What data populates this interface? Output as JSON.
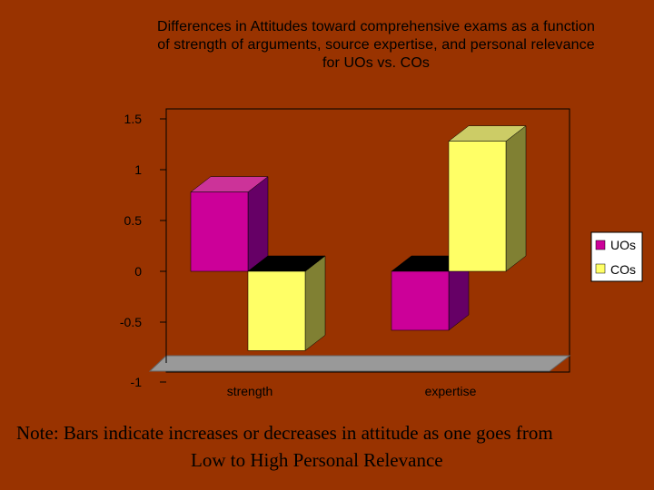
{
  "chart_data": {
    "type": "bar",
    "title_lines": [
      "Differences in Attitudes toward comprehensive exams as a function",
      "of strength of arguments, source expertise, and personal relevance",
      "for UOs vs. COs"
    ],
    "categories": [
      "strength",
      "expertise"
    ],
    "series": [
      {
        "name": "UOs",
        "values": [
          0.78,
          -0.58
        ],
        "color": "#CC0099"
      },
      {
        "name": "COs",
        "values": [
          -0.78,
          1.28
        ],
        "color": "#FFFF66"
      }
    ],
    "ylim": [
      -1,
      1.5
    ],
    "y_ticks": [
      "1.5",
      "1",
      "0.5",
      "0",
      "-0.5",
      "-1"
    ],
    "legend_position": "right",
    "three_d": true
  },
  "note": {
    "line1": "Note: Bars indicate increases or decreases in attitude as one goes from",
    "line2": "Low to High Personal Relevance"
  },
  "colors": {
    "background": "#993300",
    "floor": "#999999",
    "uos_top": "#CC3399",
    "uos_side": "#660066",
    "cos_top": "#CCCC66",
    "cos_side": "#808033"
  }
}
